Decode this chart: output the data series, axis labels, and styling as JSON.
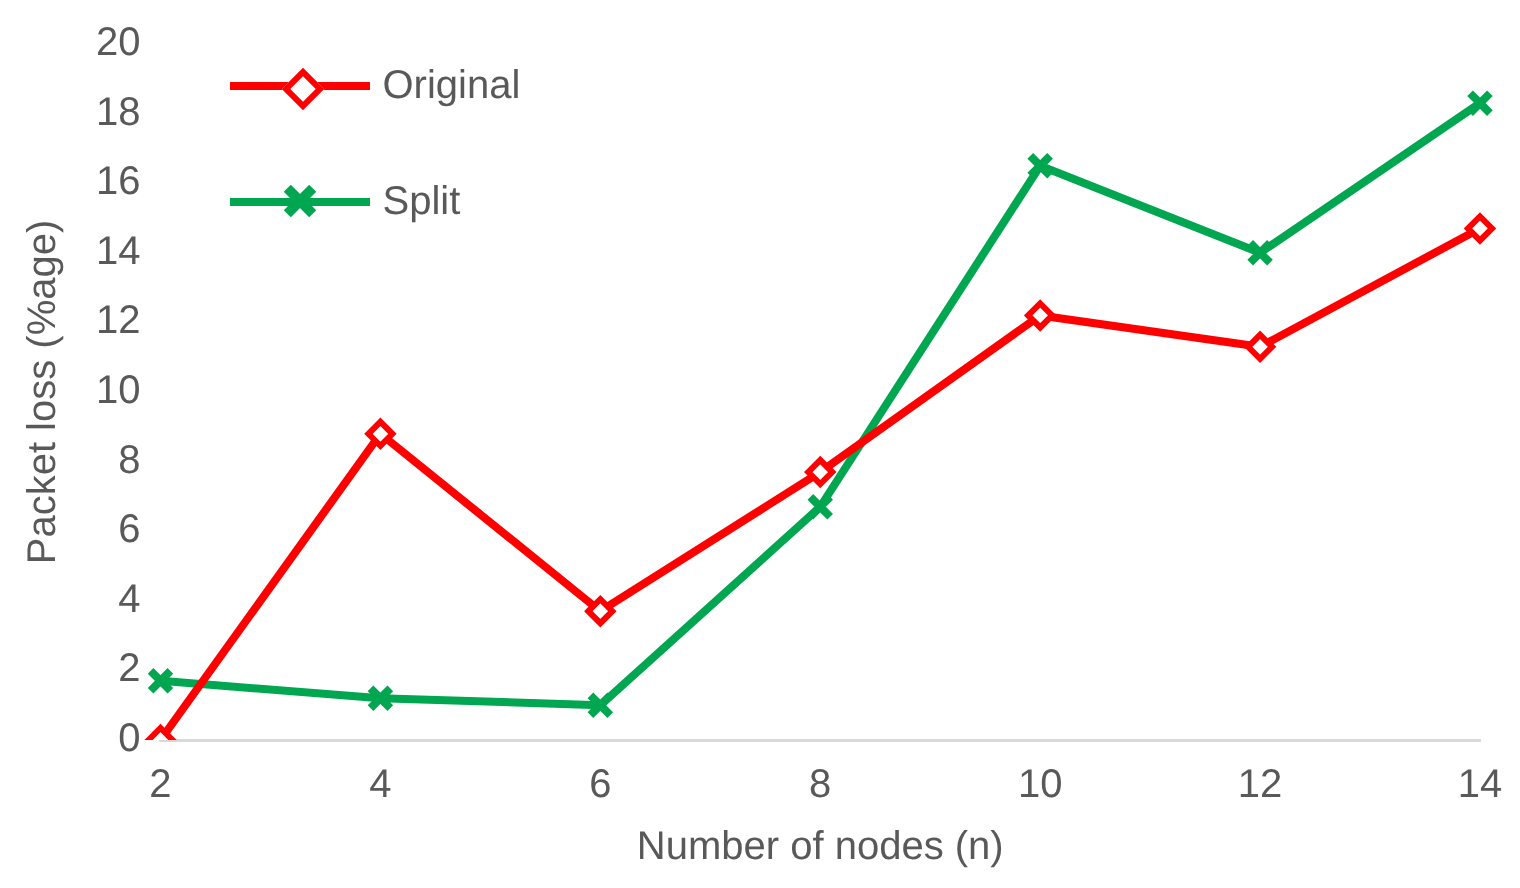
{
  "chart_data": {
    "type": "line",
    "xlabel": "Number of nodes (n)",
    "ylabel": "Packet loss (%age)",
    "categories": [
      "2",
      "4",
      "6",
      "8",
      "10",
      "12",
      "14"
    ],
    "series": [
      {
        "name": "Original",
        "color": "#ff0000",
        "marker": "diamond",
        "values": [
          0,
          8.8,
          3.7,
          7.7,
          12.2,
          11.3,
          14.7
        ]
      },
      {
        "name": "Split",
        "color": "#00a650",
        "marker": "cross",
        "values": [
          1.7,
          1.2,
          1.0,
          6.7,
          16.5,
          14.0,
          18.3
        ]
      }
    ],
    "ylim": [
      0,
      20
    ],
    "yticks": [
      0,
      2,
      4,
      6,
      8,
      10,
      12,
      14,
      16,
      18,
      20
    ],
    "grid": false,
    "legend": "top left",
    "line_style": "solid"
  }
}
